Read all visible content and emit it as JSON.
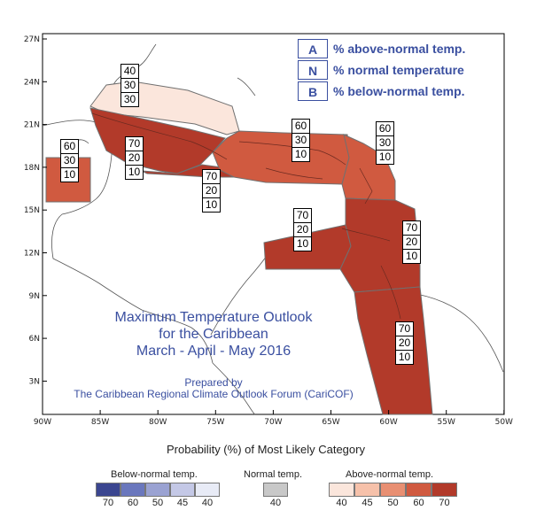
{
  "map": {
    "lon_ticks": [
      "90W",
      "85W",
      "80W",
      "75W",
      "70W",
      "65W",
      "60W",
      "55W",
      "50W"
    ],
    "lat_ticks": [
      "27N",
      "24N",
      "21N",
      "18N",
      "15N",
      "12N",
      "9N",
      "6N",
      "3N"
    ]
  },
  "legend": {
    "rows": [
      {
        "letter": "A",
        "text": "% above-normal temp."
      },
      {
        "letter": "N",
        "text": "% normal temperature"
      },
      {
        "letter": "B",
        "text": "% below-normal temp."
      }
    ]
  },
  "title": {
    "line1": "Maximum Temperature Outlook",
    "line2": "for the Caribbean",
    "line3": "March - April - May 2016"
  },
  "prepared": {
    "line1": "Prepared by",
    "line2": "The Caribbean Regional Climate Outlook Forum (CariCOF)"
  },
  "regions": [
    {
      "name": "Bahamas",
      "A": "40",
      "N": "30",
      "B": "30",
      "color": "#fbe6dc"
    },
    {
      "name": "Belize",
      "A": "60",
      "N": "30",
      "B": "10",
      "color": "#d05a40"
    },
    {
      "name": "Cuba",
      "A": "70",
      "N": "20",
      "B": "10",
      "color": "#b23a2a"
    },
    {
      "name": "Jamaica-Cayman",
      "A": "70",
      "N": "20",
      "B": "10",
      "color": "#b23a2a"
    },
    {
      "name": "Hispaniola-PuertoRico",
      "A": "60",
      "N": "30",
      "B": "10",
      "color": "#d05a40"
    },
    {
      "name": "Leeward-Islands",
      "A": "60",
      "N": "30",
      "B": "10",
      "color": "#d05a40"
    },
    {
      "name": "ABC-Islands",
      "A": "70",
      "N": "20",
      "B": "10",
      "color": "#b23a2a"
    },
    {
      "name": "Windward-Trinidad",
      "A": "70",
      "N": "20",
      "B": "10",
      "color": "#b23a2a"
    },
    {
      "name": "Guianas",
      "A": "70",
      "N": "20",
      "B": "10",
      "color": "#b23a2a"
    }
  ],
  "colorbar": {
    "title": "Probability (%) of Most Likely Category",
    "below": {
      "label": "Below-normal temp.",
      "values": [
        "70",
        "60",
        "50",
        "45",
        "40"
      ],
      "colors": [
        "#3b4690",
        "#6a77bd",
        "#9aa2d2",
        "#c4c8e6",
        "#e8ebf6"
      ]
    },
    "normal": {
      "label": "Normal temp.",
      "values": [
        "40"
      ],
      "colors": [
        "#c8c8c8"
      ]
    },
    "above": {
      "label": "Above-normal temp.",
      "values": [
        "40",
        "45",
        "50",
        "60",
        "70"
      ],
      "colors": [
        "#fbe6dc",
        "#f6c1aa",
        "#e88f72",
        "#d05a40",
        "#b23a2a"
      ]
    }
  }
}
